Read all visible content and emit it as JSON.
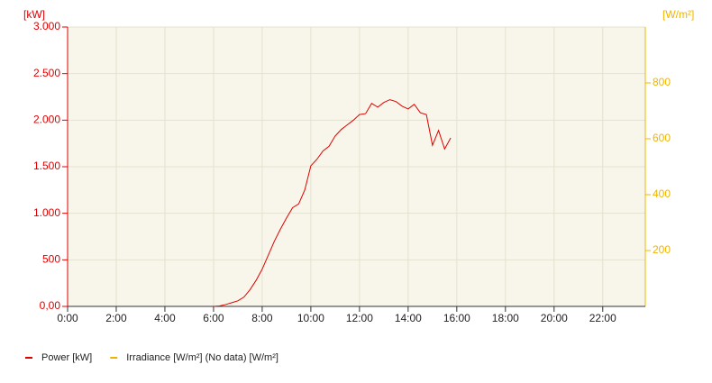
{
  "chart_data": {
    "type": "line",
    "y_label": "[kW]",
    "y2_label": "[W/m²]",
    "x": [
      6,
      6.25,
      6.5,
      6.75,
      7,
      7.25,
      7.5,
      7.75,
      8,
      8.25,
      8.5,
      8.75,
      9,
      9.25,
      9.5,
      9.75,
      10,
      10.25,
      10.5,
      10.75,
      11,
      11.25,
      11.5,
      11.75,
      12,
      12.25,
      12.5,
      12.75,
      13,
      13.25,
      13.5,
      13.75,
      14,
      14.25,
      14.5,
      14.75,
      15,
      15.25,
      15.5,
      15.75
    ],
    "series": [
      {
        "name": "Power [kW]",
        "color": "#e00000",
        "axis": "y",
        "values": [
          0,
          5,
          20,
          40,
          60,
          100,
          180,
          280,
          400,
          550,
          700,
          830,
          950,
          1060,
          1100,
          1250,
          1510,
          1580,
          1670,
          1720,
          1830,
          1900,
          1950,
          2000,
          2060,
          2070,
          2180,
          2140,
          2190,
          2220,
          2200,
          2150,
          2120,
          2170,
          2080,
          2060,
          1730,
          1890,
          1690,
          1810
        ]
      },
      {
        "name": "Irradiance [W/m²] (No data) [W/m²]",
        "color": "#f0b400",
        "axis": "y2",
        "values": [
          null,
          null,
          null,
          null,
          null,
          null,
          null,
          null,
          null,
          null,
          null,
          null,
          null,
          null,
          null,
          null,
          null,
          null,
          null,
          null,
          null,
          null,
          null,
          null,
          null,
          null,
          null,
          null,
          null,
          null,
          null,
          null,
          null,
          null,
          null,
          null,
          null,
          null,
          null,
          null
        ]
      }
    ],
    "xlim": [
      0,
      23.75
    ],
    "xticks": [
      {
        "value": 0,
        "label": "0:00"
      },
      {
        "value": 2,
        "label": "2:00"
      },
      {
        "value": 4,
        "label": "4:00"
      },
      {
        "value": 6,
        "label": "6:00"
      },
      {
        "value": 8,
        "label": "8:00"
      },
      {
        "value": 10,
        "label": "10:00"
      },
      {
        "value": 12,
        "label": "12:00"
      },
      {
        "value": 14,
        "label": "14:00"
      },
      {
        "value": 16,
        "label": "16:00"
      },
      {
        "value": 18,
        "label": "18:00"
      },
      {
        "value": 20,
        "label": "20:00"
      },
      {
        "value": 22,
        "label": "22:00"
      }
    ],
    "ylim": [
      0,
      3000
    ],
    "yticks": [
      {
        "value": 0,
        "label": "0,00"
      },
      500,
      {
        "value": 1000,
        "label": "1.000"
      },
      {
        "value": 1500,
        "label": "1.500"
      },
      {
        "value": 2000,
        "label": "2.000"
      },
      {
        "value": 2500,
        "label": "2.500"
      },
      {
        "value": 3000,
        "label": "3.000"
      }
    ],
    "y2lim": [
      0,
      1000
    ],
    "y2ticks": [
      200,
      400,
      600,
      800
    ],
    "grid": true,
    "background": "#f8f6ea"
  }
}
